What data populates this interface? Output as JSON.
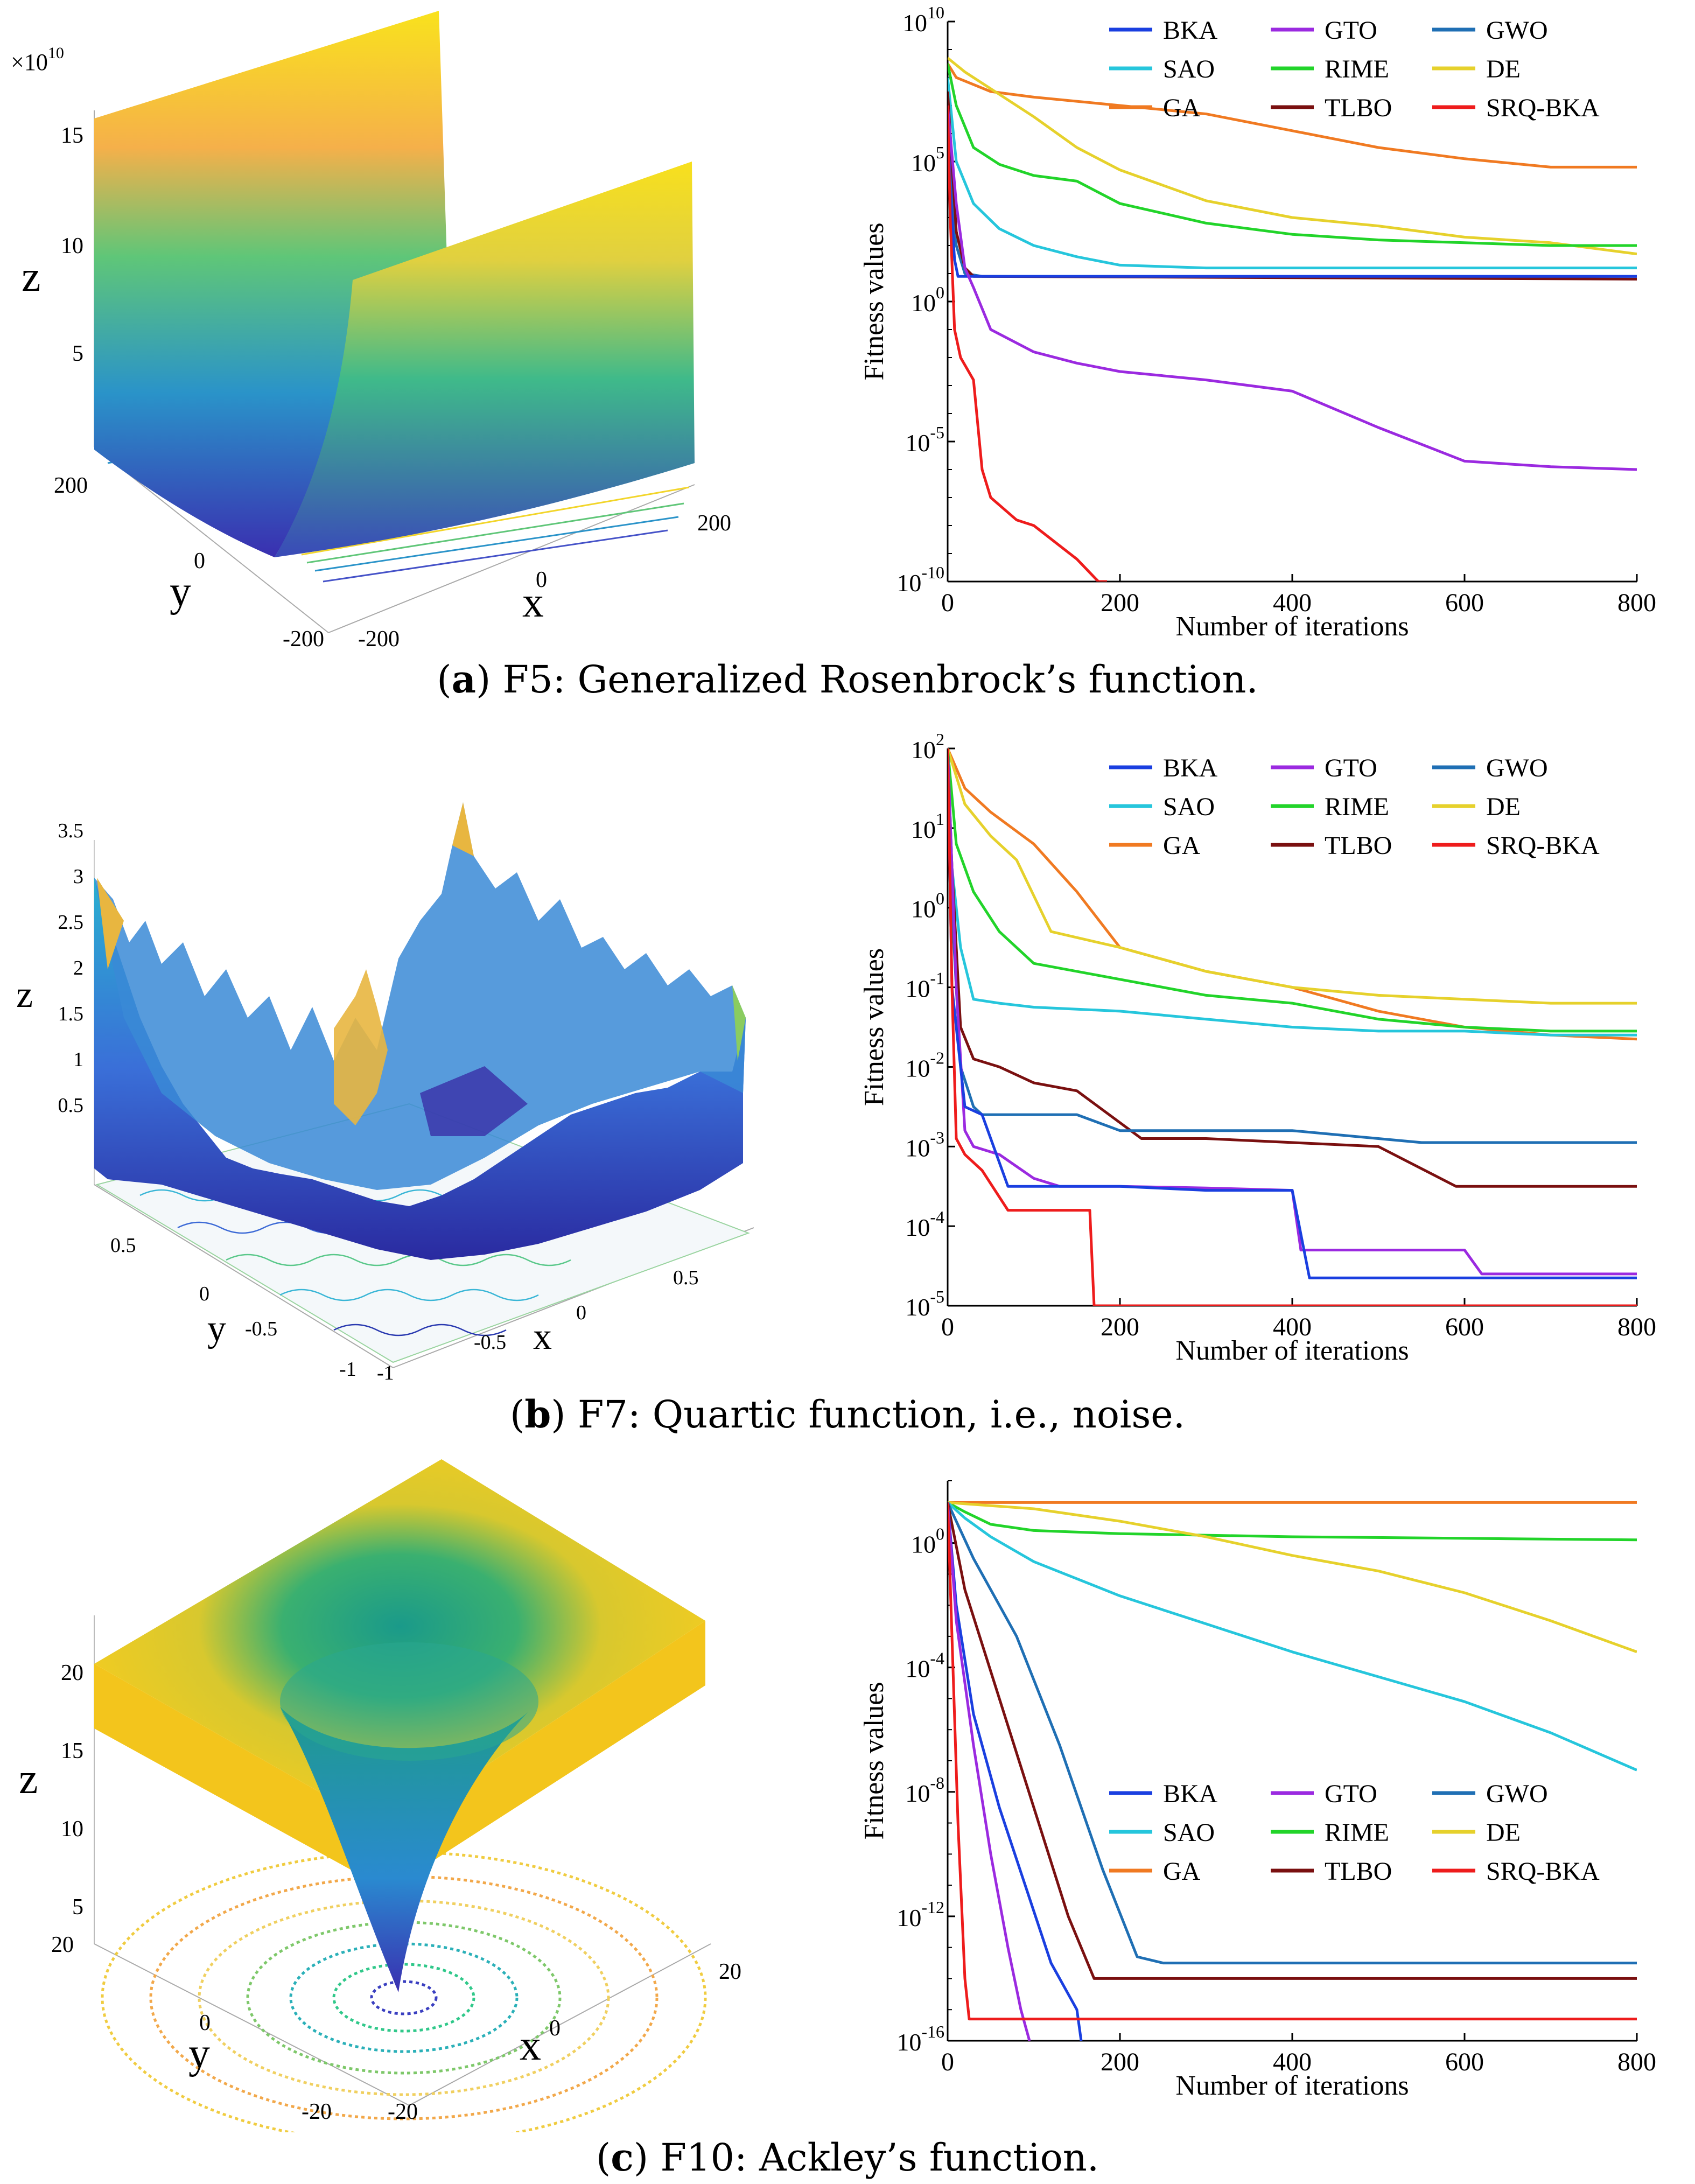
{
  "panels": [
    {
      "id": "a",
      "caption_letter": "a",
      "caption_text": "F5: Generalized Rosenbrock’s function.",
      "surface": {
        "z_label": "z",
        "x_label": "x",
        "y_label": "y",
        "z_multiplier": "×10",
        "z_multiplier_exp": "10",
        "z_ticks": [
          "15",
          "10",
          "5"
        ],
        "x_ticks": [
          "200",
          "0",
          "-200"
        ],
        "y_ticks": [
          "200",
          "0",
          "-200"
        ]
      }
    },
    {
      "id": "b",
      "caption_letter": "b",
      "caption_text": "F7: Quartic function, i.e., noise.",
      "surface": {
        "z_label": "z",
        "x_label": "x",
        "y_label": "y",
        "z_ticks": [
          "3.5",
          "3",
          "2.5",
          "2",
          "1.5",
          "1",
          "0.5"
        ],
        "x_ticks": [
          "0.5",
          "0",
          "-0.5",
          "-1"
        ],
        "y_ticks": [
          "0.5",
          "0",
          "-0.5",
          "-1"
        ]
      }
    },
    {
      "id": "c",
      "caption_letter": "c",
      "caption_text": "F10: Ackley’s function.",
      "surface": {
        "z_label": "z",
        "x_label": "x",
        "y_label": "y",
        "z_ticks": [
          "20",
          "15",
          "10",
          "5"
        ],
        "x_ticks": [
          "20",
          "0",
          "-20"
        ],
        "y_ticks": [
          "20",
          "0",
          "-20"
        ]
      }
    }
  ],
  "legend_entries": [
    "BKA",
    "GTO",
    "GWO",
    "SAO",
    "RIME",
    "DE",
    "GA",
    "TLBO",
    "SRQ-BKA"
  ],
  "series_colors": {
    "BKA": "#1a3fe0",
    "GTO": "#9b2ae0",
    "GWO": "#1f6fb4",
    "SAO": "#26c6dc",
    "RIME": "#22d42a",
    "DE": "#e6d12c",
    "GA": "#f07a22",
    "TLBO": "#7a1010",
    "SRQ-BKA": "#ee1c1c"
  },
  "chart_data": [
    {
      "type": "line",
      "title": "(a) F5: Generalized Rosenbrock’s function.",
      "xlabel": "Number of iterations",
      "ylabel": "Fitness values",
      "yscale": "log",
      "xlim": [
        0,
        800
      ],
      "ylim_exp": [
        -10,
        10
      ],
      "x_ticks": [
        "0",
        "200",
        "400",
        "600",
        "800"
      ],
      "y_ticks": [
        {
          "exp": "10",
          "label": "10"
        },
        {
          "exp": "5",
          "label": "10"
        },
        {
          "exp": "0",
          "label": "10"
        },
        {
          "exp": "-5",
          "label": "10"
        },
        {
          "exp": "-10",
          "label": "10"
        }
      ],
      "legend_position": "top-right",
      "series": [
        {
          "name": "GA",
          "x": [
            0,
            10,
            50,
            100,
            200,
            300,
            400,
            500,
            600,
            700,
            800
          ],
          "y_log10": [
            8.5,
            8.0,
            7.5,
            7.3,
            7.0,
            6.7,
            6.1,
            5.5,
            5.1,
            4.8,
            4.8
          ]
        },
        {
          "name": "DE",
          "x": [
            0,
            20,
            60,
            100,
            150,
            200,
            300,
            400,
            500,
            600,
            700,
            800
          ],
          "y_log10": [
            8.7,
            8.2,
            7.4,
            6.6,
            5.5,
            4.7,
            3.6,
            3.0,
            2.7,
            2.3,
            2.1,
            1.7
          ]
        },
        {
          "name": "RIME",
          "x": [
            0,
            10,
            30,
            60,
            100,
            150,
            200,
            300,
            400,
            500,
            600,
            700,
            800
          ],
          "y_log10": [
            8.5,
            7.0,
            5.5,
            4.9,
            4.5,
            4.3,
            3.5,
            2.8,
            2.4,
            2.2,
            2.1,
            2.0,
            2.0
          ]
        },
        {
          "name": "SAO",
          "x": [
            0,
            10,
            30,
            60,
            100,
            150,
            200,
            300,
            400,
            500,
            800
          ],
          "y_log10": [
            8.0,
            5.0,
            3.5,
            2.6,
            2.0,
            1.6,
            1.3,
            1.2,
            1.2,
            1.2,
            1.2
          ]
        },
        {
          "name": "GWO",
          "x": [
            0,
            5,
            10,
            20,
            40,
            800
          ],
          "y_log10": [
            7.5,
            4.0,
            2.0,
            1.0,
            0.9,
            0.9
          ]
        },
        {
          "name": "TLBO",
          "x": [
            0,
            5,
            10,
            20,
            30,
            800
          ],
          "y_log10": [
            7.5,
            5.0,
            2.5,
            1.2,
            0.9,
            0.8
          ]
        },
        {
          "name": "BKA",
          "x": [
            0,
            3,
            8,
            12,
            800
          ],
          "y_log10": [
            7.0,
            4.0,
            1.5,
            0.9,
            0.9
          ]
        },
        {
          "name": "GTO",
          "x": [
            0,
            10,
            20,
            30,
            50,
            100,
            150,
            200,
            300,
            400,
            500,
            600,
            700,
            800
          ],
          "y_log10": [
            7.0,
            3.5,
            1.2,
            0.5,
            -1.0,
            -1.8,
            -2.2,
            -2.5,
            -2.8,
            -3.2,
            -4.5,
            -5.7,
            -5.9,
            -6.0
          ]
        },
        {
          "name": "SRQ-BKA",
          "x": [
            0,
            3,
            8,
            15,
            30,
            40,
            50,
            80,
            100,
            150,
            175,
            185
          ],
          "y_log10": [
            7.0,
            3.0,
            -1.0,
            -2.0,
            -2.8,
            -6.0,
            -7.0,
            -7.8,
            -8.0,
            -9.2,
            -10.0,
            -10.0
          ]
        }
      ]
    },
    {
      "type": "line",
      "title": "(b) F7: Quartic function, i.e., noise.",
      "xlabel": "Number of iterations",
      "ylabel": "Fitness values",
      "yscale": "log",
      "xlim": [
        0,
        800
      ],
      "ylim_exp": [
        -5,
        2
      ],
      "x_ticks": [
        "0",
        "200",
        "400",
        "600",
        "800"
      ],
      "y_ticks": [
        {
          "exp": "2",
          "label": "10"
        },
        {
          "exp": "1",
          "label": "10"
        },
        {
          "exp": "0",
          "label": "10"
        },
        {
          "exp": "-1",
          "label": "10"
        },
        {
          "exp": "-2",
          "label": "10"
        },
        {
          "exp": "-3",
          "label": "10"
        },
        {
          "exp": "-4",
          "label": "10"
        },
        {
          "exp": "-5",
          "label": "10"
        }
      ],
      "legend_position": "top-right",
      "series": [
        {
          "name": "GA",
          "x": [
            0,
            20,
            50,
            100,
            150,
            200,
            300,
            400,
            500,
            600,
            700,
            800
          ],
          "y_log10": [
            2.0,
            1.5,
            1.2,
            0.8,
            0.2,
            -0.5,
            -0.8,
            -1.0,
            -1.3,
            -1.5,
            -1.6,
            -1.65
          ]
        },
        {
          "name": "DE",
          "x": [
            0,
            20,
            50,
            80,
            120,
            200,
            300,
            400,
            500,
            600,
            700,
            800
          ],
          "y_log10": [
            2.0,
            1.3,
            0.9,
            0.6,
            -0.3,
            -0.5,
            -0.8,
            -1.0,
            -1.1,
            -1.15,
            -1.2,
            -1.2
          ]
        },
        {
          "name": "RIME",
          "x": [
            0,
            10,
            30,
            60,
            100,
            200,
            300,
            400,
            500,
            600,
            700,
            800
          ],
          "y_log10": [
            2.0,
            0.8,
            0.2,
            -0.3,
            -0.7,
            -0.9,
            -1.1,
            -1.2,
            -1.4,
            -1.5,
            -1.55,
            -1.55
          ]
        },
        {
          "name": "SAO",
          "x": [
            0,
            5,
            15,
            30,
            60,
            100,
            200,
            300,
            400,
            500,
            600,
            700,
            800
          ],
          "y_log10": [
            2.0,
            0.5,
            -0.5,
            -1.15,
            -1.2,
            -1.25,
            -1.3,
            -1.4,
            -1.5,
            -1.55,
            -1.55,
            -1.6,
            -1.6
          ]
        },
        {
          "name": "TLBO",
          "x": [
            0,
            5,
            15,
            30,
            60,
            100,
            150,
            225,
            300,
            400,
            500,
            590,
            700,
            800
          ],
          "y_log10": [
            2.0,
            0.5,
            -1.5,
            -1.9,
            -2.0,
            -2.2,
            -2.3,
            -2.9,
            -2.9,
            -2.95,
            -3.0,
            -3.5,
            -3.5,
            -3.5
          ]
        },
        {
          "name": "GWO",
          "x": [
            0,
            5,
            15,
            30,
            40,
            100,
            150,
            200,
            300,
            400,
            500,
            550,
            800
          ],
          "y_log10": [
            2.0,
            0.0,
            -2.0,
            -2.5,
            -2.6,
            -2.6,
            -2.6,
            -2.8,
            -2.8,
            -2.8,
            -2.9,
            -2.95,
            -2.95
          ]
        },
        {
          "name": "GTO",
          "x": [
            0,
            10,
            20,
            30,
            60,
            100,
            130,
            200,
            300,
            400,
            410,
            500,
            600,
            620,
            800
          ],
          "y_log10": [
            2.0,
            -1.0,
            -2.8,
            -3.0,
            -3.1,
            -3.4,
            -3.5,
            -3.5,
            -3.52,
            -3.55,
            -4.3,
            -4.3,
            -4.3,
            -4.6,
            -4.6
          ]
        },
        {
          "name": "BKA",
          "x": [
            0,
            5,
            20,
            40,
            70,
            120,
            200,
            300,
            400,
            420,
            500,
            800
          ],
          "y_log10": [
            2.0,
            -1.0,
            -2.5,
            -2.6,
            -3.5,
            -3.5,
            -3.5,
            -3.55,
            -3.55,
            -4.65,
            -4.65,
            -4.65
          ]
        },
        {
          "name": "SRQ-BKA",
          "x": [
            0,
            5,
            10,
            20,
            40,
            70,
            100,
            165,
            170,
            800
          ],
          "y_log10": [
            2.0,
            -1.0,
            -2.9,
            -3.1,
            -3.3,
            -3.8,
            -3.8,
            -3.8,
            -5.0,
            -5.0
          ]
        }
      ]
    },
    {
      "type": "line",
      "title": "(c) F10: Ackley’s function.",
      "xlabel": "Number of iterations",
      "ylabel": "Fitness values",
      "yscale": "log",
      "xlim": [
        0,
        800
      ],
      "ylim_exp": [
        -16,
        2
      ],
      "x_ticks": [
        "0",
        "200",
        "400",
        "600",
        "800"
      ],
      "y_ticks": [
        {
          "exp": "0",
          "label": "10"
        },
        {
          "exp": "-4",
          "label": "10"
        },
        {
          "exp": "-8",
          "label": "10"
        },
        {
          "exp": "-12",
          "label": "10"
        },
        {
          "exp": "-16",
          "label": "10"
        }
      ],
      "legend_position": "lower-right",
      "series": [
        {
          "name": "GA",
          "x": [
            0,
            800
          ],
          "y_log10": [
            1.3,
            1.3
          ]
        },
        {
          "name": "RIME",
          "x": [
            0,
            20,
            50,
            100,
            200,
            400,
            600,
            800
          ],
          "y_log10": [
            1.3,
            1.0,
            0.6,
            0.4,
            0.3,
            0.2,
            0.15,
            0.1
          ]
        },
        {
          "name": "DE",
          "x": [
            0,
            100,
            200,
            300,
            400,
            500,
            600,
            700,
            800
          ],
          "y_log10": [
            1.3,
            1.1,
            0.7,
            0.2,
            -0.4,
            -0.9,
            -1.6,
            -2.5,
            -3.5
          ]
        },
        {
          "name": "SAO",
          "x": [
            0,
            20,
            50,
            100,
            200,
            300,
            400,
            500,
            600,
            700,
            800
          ],
          "y_log10": [
            1.3,
            0.8,
            0.2,
            -0.6,
            -1.7,
            -2.6,
            -3.5,
            -4.3,
            -5.1,
            -6.1,
            -7.3
          ]
        },
        {
          "name": "GWO",
          "x": [
            0,
            30,
            80,
            130,
            180,
            220,
            250,
            300,
            800
          ],
          "y_log10": [
            1.3,
            -0.5,
            -3.0,
            -6.5,
            -10.5,
            -13.3,
            -13.5,
            -13.5,
            -13.5
          ]
        },
        {
          "name": "TLBO",
          "x": [
            0,
            20,
            60,
            100,
            140,
            170,
            180,
            800
          ],
          "y_log10": [
            1.3,
            -1.5,
            -5.0,
            -8.5,
            -12.0,
            -14.0,
            -14.0,
            -14.0
          ]
        },
        {
          "name": "BKA",
          "x": [
            0,
            10,
            30,
            60,
            90,
            120,
            140,
            150,
            155
          ],
          "y_log10": [
            1.3,
            -2.0,
            -5.5,
            -8.5,
            -11.0,
            -13.5,
            -14.5,
            -15.0,
            -16.0
          ]
        },
        {
          "name": "GTO",
          "x": [
            0,
            10,
            30,
            50,
            70,
            85,
            95
          ],
          "y_log10": [
            1.3,
            -2.5,
            -6.5,
            -10.0,
            -13.0,
            -15.0,
            -16.0
          ]
        },
        {
          "name": "SRQ-BKA",
          "x": [
            0,
            5,
            12,
            20,
            25,
            30,
            800
          ],
          "y_log10": [
            1.3,
            -3.0,
            -9.0,
            -14.0,
            -15.3,
            -15.3,
            -15.3
          ]
        }
      ]
    }
  ]
}
